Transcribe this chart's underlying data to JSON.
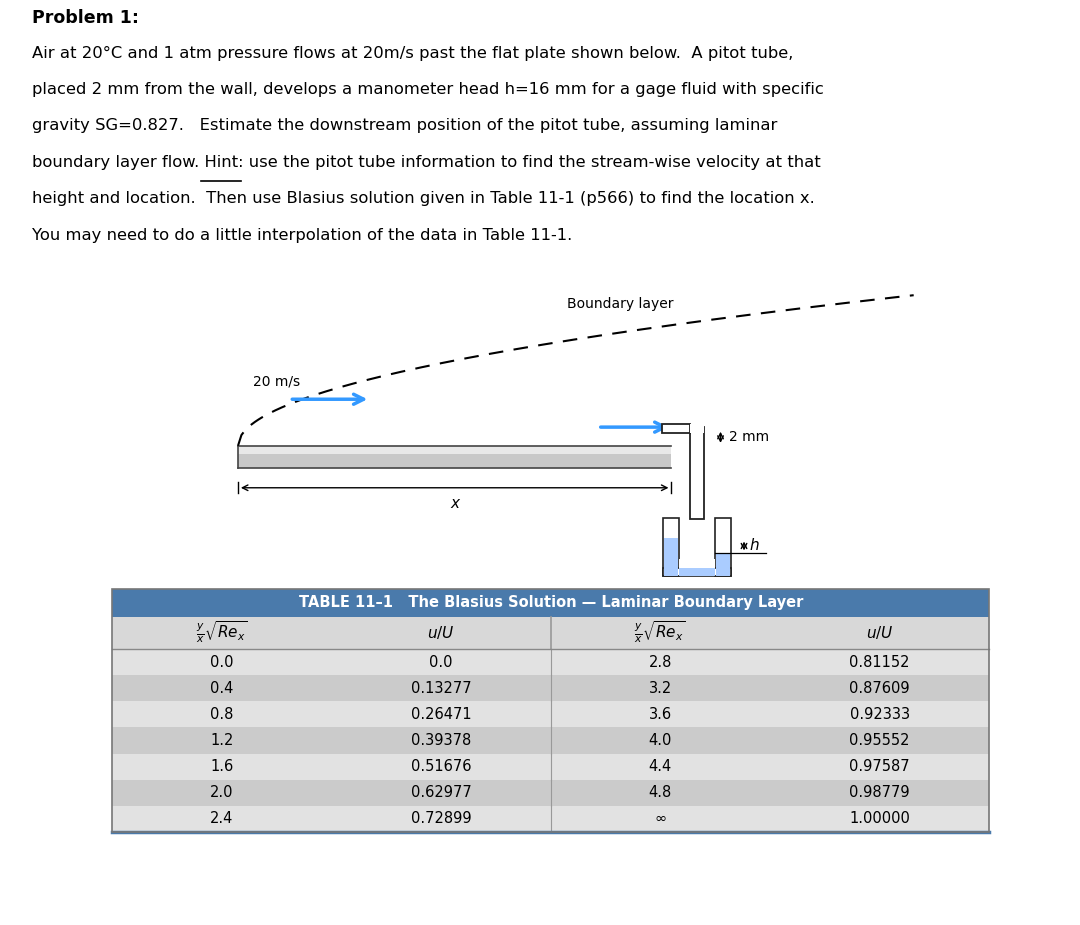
{
  "problem_title": "Problem 1:",
  "problem_text_lines": [
    "Air at 20°C and 1 atm pressure flows at 20m/s past the flat plate shown below.  A pitot tube,",
    "placed 2 mm from the wall, develops a manometer head h=16 mm for a gage fluid with specific",
    "gravity SG=0.827.   Estimate the downstream position of the pitot tube, assuming laminar",
    "boundary layer flow. Hint: use the pitot tube information to find the stream-wise velocity at that",
    "height and location.  Then use Blasius solution given in Table 11-1 (p566) to find the location x.",
    "You may need to do a little interpolation of the data in Table 11-1."
  ],
  "table_header": "TABLE 11–1   The Blasius Solution — Laminar Boundary Layer",
  "table_data": [
    [
      0.0,
      0.0,
      2.8,
      0.81152
    ],
    [
      0.4,
      0.13277,
      3.2,
      0.87609
    ],
    [
      0.8,
      0.26471,
      3.6,
      0.92333
    ],
    [
      1.2,
      0.39378,
      4.0,
      0.95552
    ],
    [
      1.6,
      0.51676,
      4.4,
      0.97587
    ],
    [
      2.0,
      0.62977,
      4.8,
      0.98779
    ],
    [
      2.4,
      0.72899,
      "∞",
      1.0
    ]
  ],
  "table_bg_header": "#4a7aab",
  "table_bg_light": "#e2e2e2",
  "table_bg_dark": "#cbcbcb",
  "table_header_text_color": "#ffffff",
  "boundary_label": "Boundary layer",
  "speed_label": "20 m/s",
  "distance_label": "2 mm",
  "x_label": "x",
  "h_label": "h",
  "arrow_color": "#3399ff",
  "fluid_color": "#aaccff",
  "background_color": "#ffffff"
}
